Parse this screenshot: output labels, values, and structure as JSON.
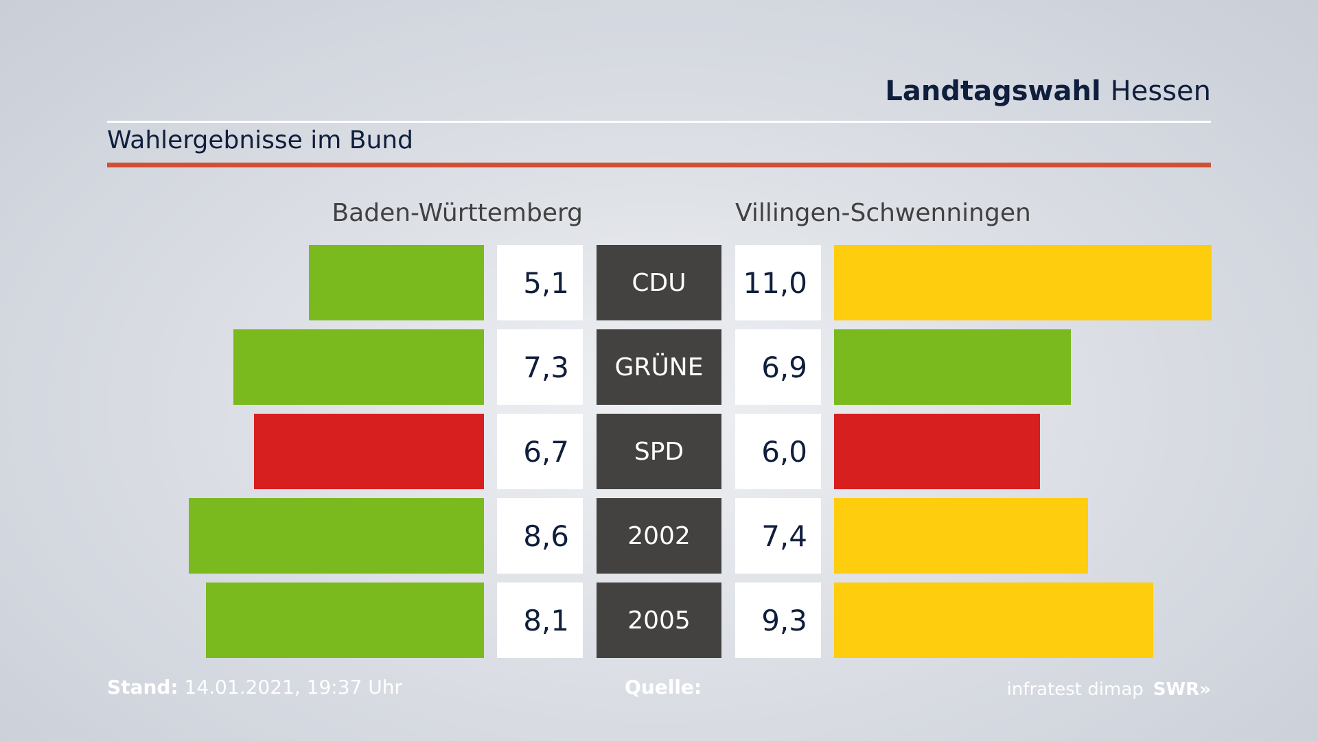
{
  "header": {
    "title_bold": "Landtagswahl",
    "title_light": "Hessen"
  },
  "subtitle": "Wahlergebnisse im Bund",
  "colors": {
    "rule_red": "#d14f34",
    "green": "#7aba1e",
    "red": "#d81f1f",
    "yellow": "#fecd0e",
    "party_box": "#434240"
  },
  "chart_data": {
    "type": "bar",
    "orientation": "horizontal-butterfly",
    "categories": [
      "CDU",
      "GRÜNE",
      "SPD",
      "2002",
      "2005"
    ],
    "series": [
      {
        "name": "Baden-Württemberg",
        "values": [
          5.1,
          7.3,
          6.7,
          8.6,
          8.1
        ],
        "labels": [
          "5,1",
          "7,3",
          "6,7",
          "8,6",
          "8,1"
        ],
        "colors": [
          "#7aba1e",
          "#7aba1e",
          "#d81f1f",
          "#7aba1e",
          "#7aba1e"
        ]
      },
      {
        "name": "Villingen-Schwenningen",
        "values": [
          11.0,
          6.9,
          6.0,
          7.4,
          9.3
        ],
        "labels": [
          "11,0",
          "6,9",
          "6,0",
          "7,4",
          "9,3"
        ],
        "colors": [
          "#fecd0e",
          "#7aba1e",
          "#d81f1f",
          "#fecd0e",
          "#fecd0e"
        ]
      }
    ]
  },
  "footer": {
    "stand_label": "Stand:",
    "stand_value": "14.01.2021, 19:37 Uhr",
    "quelle_label": "Quelle:",
    "source_name": "infratest dimap",
    "broadcaster": "SWR»"
  }
}
